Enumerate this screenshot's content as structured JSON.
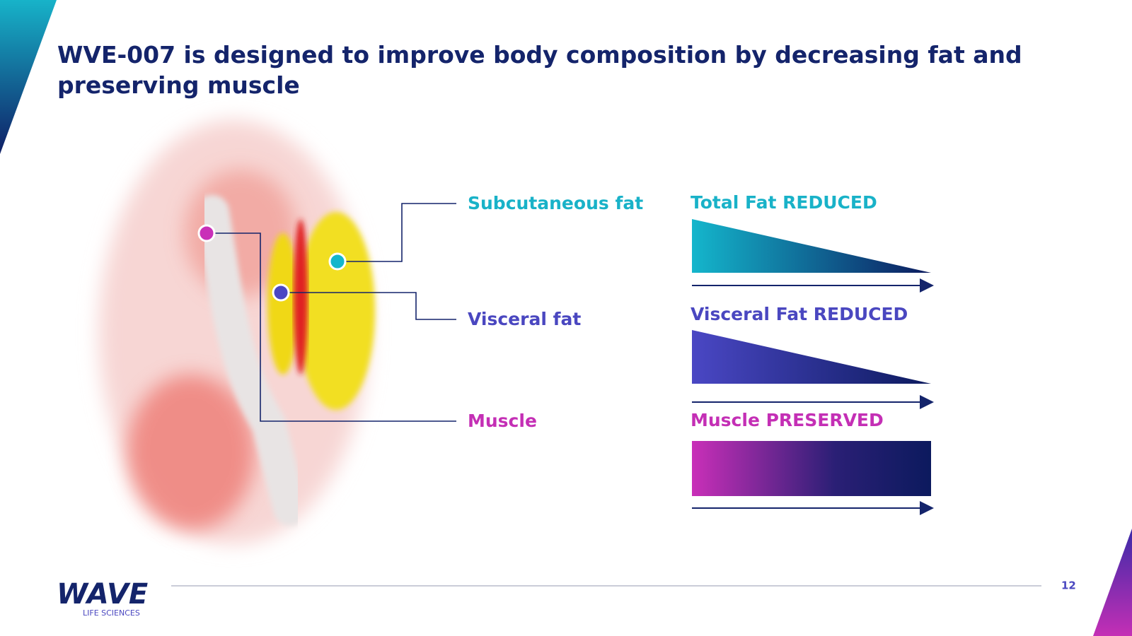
{
  "header": {
    "title": "WVE-007 is designed to improve body composition by decreasing fat and preserving muscle"
  },
  "callouts": [
    {
      "label": "Subcutaneous fat"
    },
    {
      "label": "Visceral fat"
    },
    {
      "label": "Muscle"
    }
  ],
  "panels": [
    {
      "title": "Total Fat REDUCED"
    },
    {
      "title": "Visceral Fat REDUCED"
    },
    {
      "title": "Muscle PRESERVED"
    }
  ],
  "footer": {
    "logo": "WAVE",
    "logo_sub": "LIFE SCIENCES",
    "page_number": "12"
  }
}
